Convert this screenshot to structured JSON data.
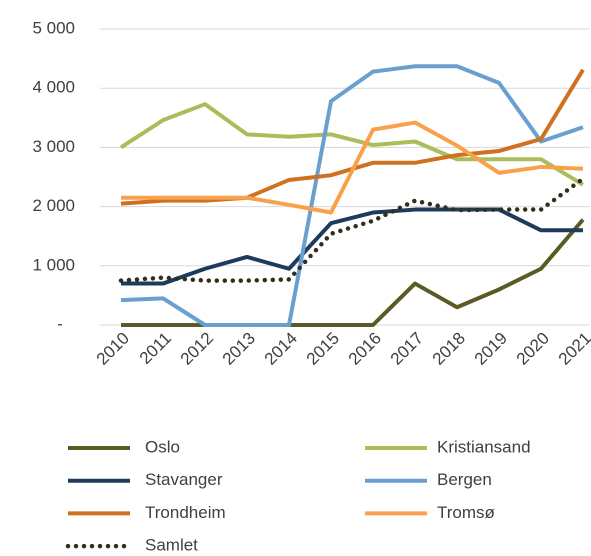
{
  "chart_data": {
    "type": "line",
    "categories": [
      "2010",
      "2011",
      "2012",
      "2013",
      "2014",
      "2015",
      "2016",
      "2017",
      "2018",
      "2019",
      "2020",
      "2021"
    ],
    "ylim": [
      0,
      5000
    ],
    "yticks": [
      {
        "value": 0,
        "label": "-"
      },
      {
        "value": 1000,
        "label": "1 000"
      },
      {
        "value": 2000,
        "label": "2 000"
      },
      {
        "value": 3000,
        "label": "3 000"
      },
      {
        "value": 4000,
        "label": "4 000"
      },
      {
        "value": 5000,
        "label": "5 000"
      }
    ],
    "grid": true,
    "legend": "bottom",
    "series": [
      {
        "name": "Oslo",
        "color": "#5b5a24",
        "style": "solid",
        "values": [
          0,
          0,
          0,
          0,
          0,
          0,
          0,
          700,
          300,
          600,
          950,
          1780
        ]
      },
      {
        "name": "Kristiansand",
        "color": "#a9bd5a",
        "style": "solid",
        "values": [
          3000,
          3460,
          3730,
          3220,
          3180,
          3220,
          3040,
          3100,
          2800,
          2800,
          2800,
          2370
        ]
      },
      {
        "name": "Stavanger",
        "color": "#1f3b5c",
        "style": "solid",
        "values": [
          700,
          700,
          950,
          1150,
          950,
          1720,
          1900,
          1950,
          1950,
          1950,
          1600,
          1600
        ]
      },
      {
        "name": "Bergen",
        "color": "#6a9fcf",
        "style": "solid",
        "values": [
          420,
          450,
          0,
          0,
          0,
          3780,
          4280,
          4370,
          4370,
          4090,
          3100,
          3340
        ]
      },
      {
        "name": "Trondheim",
        "color": "#d0711f",
        "style": "solid",
        "values": [
          2050,
          2100,
          2100,
          2150,
          2450,
          2530,
          2740,
          2740,
          2870,
          2940,
          3140,
          4310
        ]
      },
      {
        "name": "Tromsø",
        "color": "#f9a04b",
        "style": "solid",
        "values": [
          2150,
          2150,
          2150,
          2150,
          2030,
          1900,
          3300,
          3420,
          3030,
          2570,
          2670,
          2640
        ]
      },
      {
        "name": "Samlet",
        "color": "#2f2f1c",
        "style": "dotted",
        "values": [
          750,
          800,
          750,
          750,
          770,
          1540,
          1760,
          2100,
          1940,
          1950,
          1950,
          2470
        ]
      }
    ]
  }
}
